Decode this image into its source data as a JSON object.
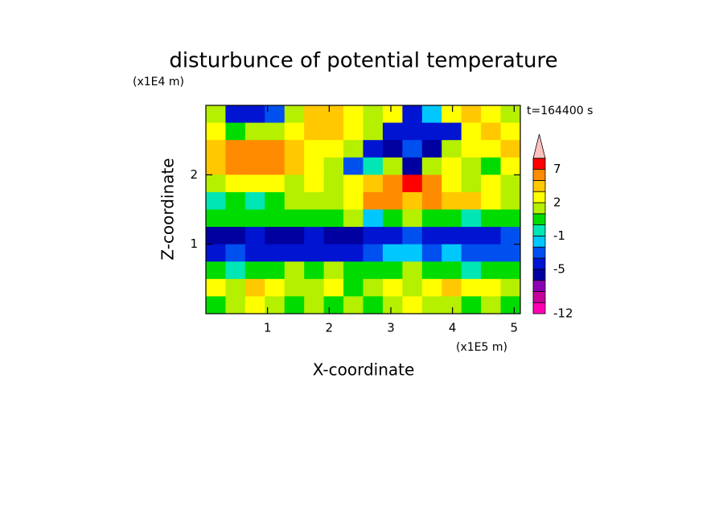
{
  "chart_data": {
    "type": "filled-contour",
    "title": "disturbunce of potential temperature",
    "y_unit": "(x1E4 m)",
    "x_unit": "(x1E5 m)",
    "time_label": "t=164400 s",
    "xlabel": "X-coordinate",
    "ylabel": "Z-coordinate",
    "xlim": [
      0,
      5.1
    ],
    "ylim": [
      0,
      3
    ],
    "xticks": [
      1,
      2,
      3,
      4,
      5
    ],
    "yticks": [
      1,
      2
    ],
    "z": [
      [
        1.5,
        -4.5,
        -4.5,
        -4,
        1.5,
        3,
        3.5,
        2.5,
        1.5,
        2,
        -4.5,
        -3,
        2.5,
        3.5,
        2.5,
        1.5
      ],
      [
        2,
        0.5,
        1.5,
        1.5,
        2.5,
        3.5,
        3,
        2,
        1,
        -5,
        -4.5,
        -5,
        -4.5,
        2,
        3,
        2
      ],
      [
        3.5,
        4.5,
        5,
        4.5,
        3.5,
        2.5,
        2,
        1.5,
        -4.5,
        -5.5,
        -4,
        -6,
        1.5,
        2,
        2.5,
        3
      ],
      [
        3.5,
        5,
        5,
        4.5,
        3,
        2,
        1,
        -4,
        -1,
        1.5,
        -6,
        1.5,
        2,
        1,
        0.5,
        2
      ],
      [
        1.5,
        2.5,
        2.5,
        2,
        1.5,
        2,
        1.5,
        2.5,
        3.5,
        4.5,
        8,
        4.5,
        2.5,
        1.5,
        2,
        1
      ],
      [
        -0.5,
        0.5,
        -0.5,
        0.5,
        1,
        1.5,
        1,
        2.5,
        4,
        4.5,
        3,
        4.5,
        3,
        3.5,
        2.5,
        1.5
      ],
      [
        0.5,
        0.5,
        0.5,
        0.5,
        0.5,
        0.5,
        0.5,
        1,
        -1.5,
        0.5,
        1.5,
        0.5,
        0.5,
        -0.5,
        0.5,
        0.5
      ],
      [
        -5.5,
        -5.5,
        -5,
        -5.5,
        -5.5,
        -5,
        -5.5,
        -5.5,
        -5,
        -4.5,
        -4,
        -4.5,
        -4.5,
        -4.5,
        -4.5,
        -4
      ],
      [
        -4.5,
        -4,
        -4.5,
        -5,
        -4.5,
        -4.5,
        -5,
        -4.5,
        -4,
        -1.5,
        -1.5,
        -3.5,
        -2,
        -3.5,
        -4,
        -3.5
      ],
      [
        0.5,
        -0.5,
        0.5,
        0.5,
        1,
        0.5,
        1.5,
        0.5,
        0.5,
        0.5,
        1.5,
        0.5,
        0.5,
        -0.5,
        0.5,
        0.5
      ],
      [
        2,
        1.5,
        3,
        2,
        1.5,
        1.5,
        2.5,
        0.5,
        1.5,
        2,
        1.5,
        2.5,
        3,
        2.5,
        2,
        1.5
      ],
      [
        0.5,
        1.5,
        2,
        1.5,
        0.5,
        1.5,
        0.5,
        1.5,
        0.5,
        1.5,
        2,
        1.5,
        1.5,
        0.5,
        1.5,
        0.5
      ]
    ],
    "colorbar": {
      "levels": [
        -12,
        -10,
        -8,
        -6,
        -5,
        -4,
        -3,
        -1,
        0,
        1,
        2,
        3,
        4,
        7,
        9
      ],
      "colors": [
        "#ff00b4",
        "#c8009c",
        "#8c00b4",
        "#0000a0",
        "#0014d2",
        "#0050f0",
        "#00c8ff",
        "#00e6b4",
        "#00dc00",
        "#b4f000",
        "#ffff00",
        "#ffc800",
        "#ff8c00",
        "#ff0000",
        "#ffc0c0"
      ],
      "ticks": [
        -12,
        -5,
        -1,
        2,
        7
      ]
    }
  }
}
